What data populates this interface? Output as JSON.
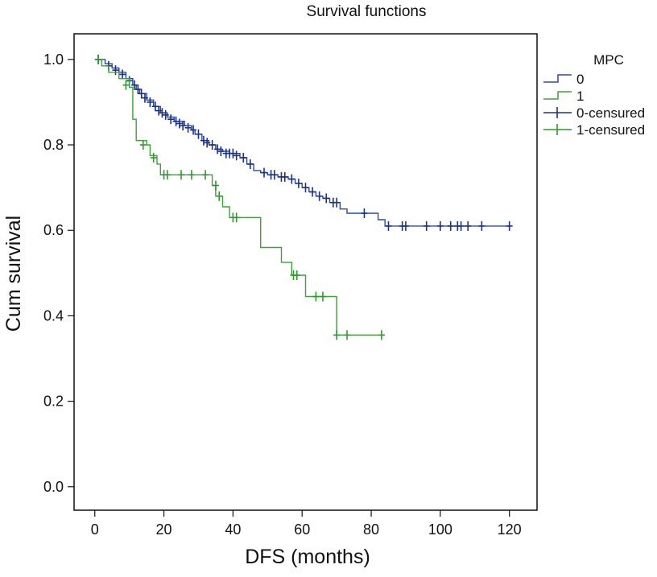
{
  "chart_data": {
    "type": "line",
    "subtype": "kaplan-meier-step",
    "title": "Survival functions",
    "xlabel": "DFS (months)",
    "ylabel": "Cum survival",
    "xlim": [
      -6,
      128
    ],
    "ylim": [
      -0.055,
      1.06
    ],
    "xticks": [
      0,
      20,
      40,
      60,
      80,
      100,
      120
    ],
    "yticks": [
      0.0,
      0.2,
      0.4,
      0.6,
      0.8,
      1.0
    ],
    "xtick_labels": [
      "0",
      "20",
      "40",
      "60",
      "80",
      "100",
      "120"
    ],
    "ytick_labels": [
      "0.0",
      "0.2",
      "0.4",
      "0.6",
      "0.8",
      "1.0"
    ],
    "grid": false,
    "legend": {
      "title": "MPC",
      "position": "right",
      "entries": [
        "0",
        "1",
        "0-censured",
        "1-censured"
      ]
    },
    "series": [
      {
        "name": "0",
        "color": "#2b4ba3",
        "censor_color": "#1b3285",
        "steps": [
          [
            0,
            1.0
          ],
          [
            3,
            0.99
          ],
          [
            5,
            0.98
          ],
          [
            7,
            0.97
          ],
          [
            9,
            0.955
          ],
          [
            11,
            0.94
          ],
          [
            12,
            0.93
          ],
          [
            13,
            0.92
          ],
          [
            15,
            0.905
          ],
          [
            17,
            0.89
          ],
          [
            19,
            0.875
          ],
          [
            21,
            0.865
          ],
          [
            23,
            0.855
          ],
          [
            26,
            0.845
          ],
          [
            28,
            0.835
          ],
          [
            29,
            0.825
          ],
          [
            31,
            0.81
          ],
          [
            33,
            0.8
          ],
          [
            35,
            0.79
          ],
          [
            37,
            0.785
          ],
          [
            39,
            0.78
          ],
          [
            42,
            0.77
          ],
          [
            44,
            0.755
          ],
          [
            46,
            0.74
          ],
          [
            48,
            0.735
          ],
          [
            50,
            0.73
          ],
          [
            53,
            0.725
          ],
          [
            56,
            0.72
          ],
          [
            58,
            0.71
          ],
          [
            60,
            0.7
          ],
          [
            62,
            0.69
          ],
          [
            64,
            0.68
          ],
          [
            66,
            0.675
          ],
          [
            68,
            0.665
          ],
          [
            71,
            0.65
          ],
          [
            73,
            0.64
          ],
          [
            82,
            0.625
          ],
          [
            84,
            0.61
          ],
          [
            120,
            0.61
          ]
        ],
        "censored": [
          [
            1,
            1.0
          ],
          [
            4,
            0.985
          ],
          [
            6,
            0.975
          ],
          [
            8,
            0.965
          ],
          [
            10,
            0.95
          ],
          [
            11.5,
            0.94
          ],
          [
            12.5,
            0.93
          ],
          [
            13.5,
            0.92
          ],
          [
            14.5,
            0.91
          ],
          [
            16,
            0.9
          ],
          [
            17.5,
            0.89
          ],
          [
            18.5,
            0.88
          ],
          [
            19.5,
            0.875
          ],
          [
            20.5,
            0.87
          ],
          [
            22,
            0.86
          ],
          [
            23.5,
            0.855
          ],
          [
            24.5,
            0.85
          ],
          [
            25.5,
            0.845
          ],
          [
            27,
            0.84
          ],
          [
            28.5,
            0.835
          ],
          [
            30,
            0.825
          ],
          [
            31.5,
            0.81
          ],
          [
            32.5,
            0.805
          ],
          [
            34,
            0.8
          ],
          [
            35.5,
            0.79
          ],
          [
            36.5,
            0.785
          ],
          [
            38,
            0.78
          ],
          [
            39,
            0.78
          ],
          [
            40,
            0.78
          ],
          [
            41,
            0.775
          ],
          [
            43,
            0.77
          ],
          [
            45,
            0.755
          ],
          [
            49,
            0.735
          ],
          [
            51,
            0.73
          ],
          [
            52,
            0.73
          ],
          [
            54,
            0.725
          ],
          [
            55,
            0.725
          ],
          [
            57,
            0.72
          ],
          [
            59,
            0.71
          ],
          [
            61,
            0.7
          ],
          [
            63,
            0.69
          ],
          [
            65,
            0.68
          ],
          [
            67,
            0.675
          ],
          [
            69,
            0.665
          ],
          [
            70,
            0.665
          ],
          [
            78,
            0.64
          ],
          [
            85,
            0.61
          ],
          [
            89,
            0.61
          ],
          [
            90,
            0.61
          ],
          [
            96,
            0.61
          ],
          [
            100,
            0.61
          ],
          [
            103,
            0.61
          ],
          [
            105,
            0.61
          ],
          [
            106,
            0.61
          ],
          [
            108,
            0.61
          ],
          [
            112,
            0.61
          ],
          [
            120,
            0.61
          ]
        ]
      },
      {
        "name": "1",
        "color": "#3ea23c",
        "censor_color": "#2f9a2c",
        "steps": [
          [
            0,
            1.0
          ],
          [
            2,
            0.985
          ],
          [
            4,
            0.97
          ],
          [
            7,
            0.955
          ],
          [
            10,
            0.935
          ],
          [
            11,
            0.86
          ],
          [
            12,
            0.81
          ],
          [
            15,
            0.8
          ],
          [
            16,
            0.775
          ],
          [
            18,
            0.755
          ],
          [
            19,
            0.73
          ],
          [
            34,
            0.705
          ],
          [
            35,
            0.68
          ],
          [
            37,
            0.655
          ],
          [
            39,
            0.63
          ],
          [
            48,
            0.56
          ],
          [
            54,
            0.525
          ],
          [
            57,
            0.495
          ],
          [
            61,
            0.445
          ],
          [
            70,
            0.355
          ],
          [
            83,
            0.355
          ]
        ],
        "censored": [
          [
            1,
            1.0
          ],
          [
            9,
            0.94
          ],
          [
            14,
            0.8
          ],
          [
            17,
            0.77
          ],
          [
            20,
            0.73
          ],
          [
            21,
            0.73
          ],
          [
            25,
            0.73
          ],
          [
            28,
            0.73
          ],
          [
            32,
            0.73
          ],
          [
            35,
            0.705
          ],
          [
            36,
            0.68
          ],
          [
            40,
            0.63
          ],
          [
            41,
            0.63
          ],
          [
            57.5,
            0.495
          ],
          [
            58.5,
            0.495
          ],
          [
            64,
            0.445
          ],
          [
            66,
            0.445
          ],
          [
            70,
            0.355
          ],
          [
            73,
            0.355
          ],
          [
            83,
            0.355
          ]
        ]
      }
    ]
  }
}
